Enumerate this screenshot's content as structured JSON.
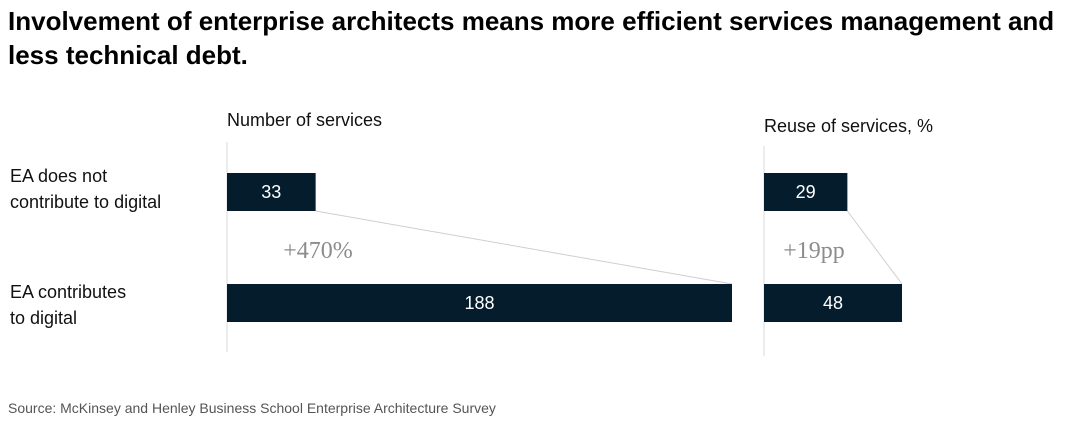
{
  "title": "Involvement of enterprise architects means more efficient services management and less technical debt.",
  "source": "Source: McKinsey and Henley Business School Enterprise Architecture Survey",
  "colors": {
    "bar": "#051c2c",
    "connector": "#cfcfcf",
    "baseline": "#d9d9d9",
    "change_label": "#8c8c8c"
  },
  "chart_data": [
    {
      "type": "bar",
      "orientation": "horizontal",
      "title": "Number of services",
      "categories": [
        "EA does not contribute to digital",
        "EA contributes to digital"
      ],
      "category_lines": [
        [
          "EA does not",
          "contribute to digital"
        ],
        [
          "EA contributes",
          "to digital"
        ]
      ],
      "values": [
        33,
        188
      ],
      "value_labels": [
        "33",
        "188"
      ],
      "change_label": "+470%"
    },
    {
      "type": "bar",
      "orientation": "horizontal",
      "title": "Reuse of services, %",
      "categories": [
        "EA does not contribute to digital",
        "EA contributes to digital"
      ],
      "values": [
        29,
        48
      ],
      "value_labels": [
        "29",
        "48"
      ],
      "change_label": "+19pp"
    }
  ]
}
